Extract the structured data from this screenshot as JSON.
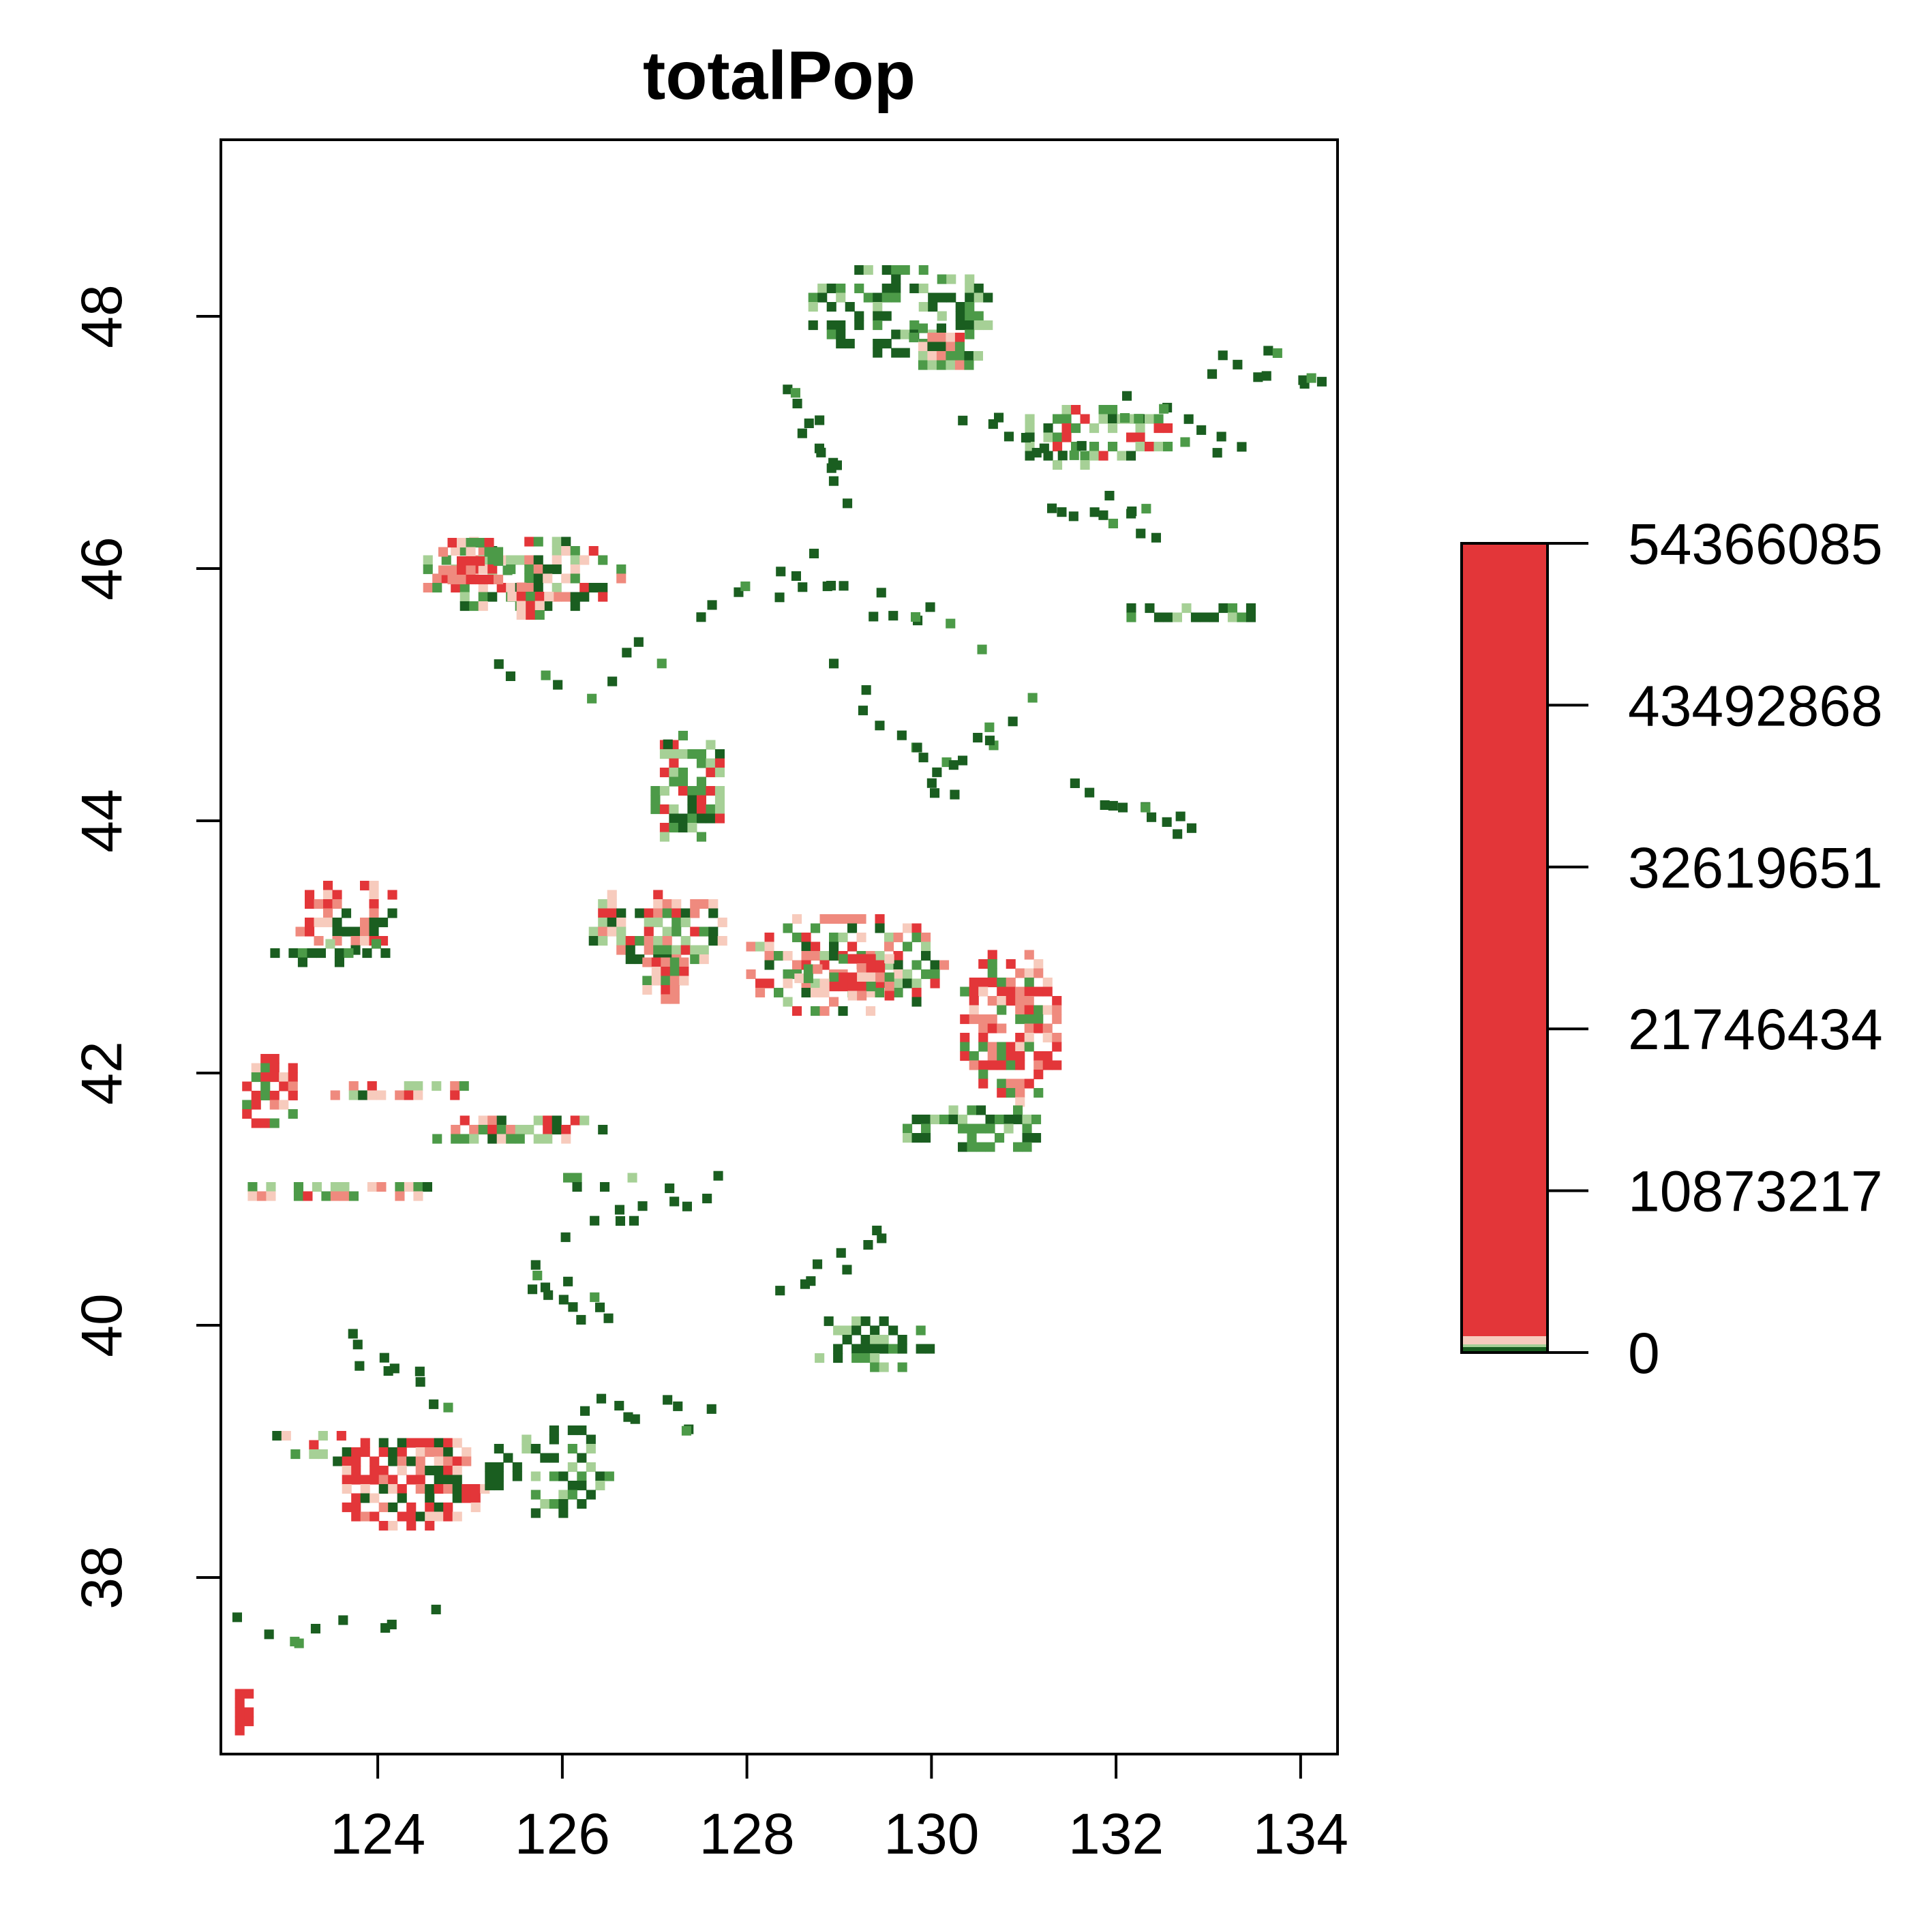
{
  "title": "totalPop",
  "map": {
    "x_ticks": [
      "124",
      "126",
      "128",
      "130",
      "132",
      "134"
    ],
    "y_ticks": [
      "38",
      "40",
      "42",
      "44",
      "46",
      "48"
    ],
    "x_range": [
      122.3,
      134.4
    ],
    "y_range": [
      36.6,
      49.4
    ],
    "colors": {
      "dark_green": "#1a5e20",
      "mid_green": "#4c9a48",
      "light_green": "#a6d096",
      "pale_pink": "#f7cbbd",
      "salmon": "#ef8a7e",
      "red": "#e33639"
    }
  },
  "legend": {
    "labels": [
      "54366085",
      "43492868",
      "32619651",
      "21746434",
      "10873217",
      "0"
    ],
    "values": [
      54366085,
      43492868,
      32619651,
      21746434,
      10873217,
      0
    ],
    "max": 54366085
  }
}
